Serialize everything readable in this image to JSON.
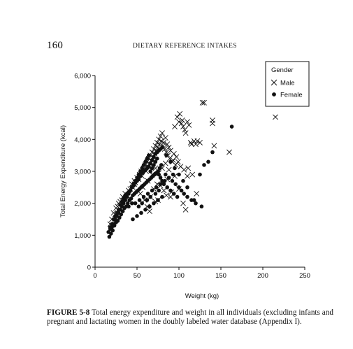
{
  "header": {
    "page_number": "160",
    "running_head": "DIETARY REFERENCE INTAKES"
  },
  "caption": {
    "label": "FIGURE 5-8",
    "text": "Total energy expenditure and weight in all individuals (excluding infants and pregnant and lactating women in the doubly labeled water database (Appendix I)."
  },
  "chart_data": {
    "type": "scatter",
    "title": "",
    "xlabel": "Weight (kg)",
    "ylabel": "Total Energy Expenditure (kcal)",
    "xlim": [
      0,
      250
    ],
    "ylim": [
      0,
      6000
    ],
    "x_ticks": [
      "0",
      "50",
      "100",
      "150",
      "200",
      "250"
    ],
    "y_ticks": [
      "0",
      "1,000",
      "2,000",
      "3,000",
      "4,000",
      "5,000",
      "6,000"
    ],
    "grid": false,
    "legend": {
      "title": "Gender",
      "placement": "top-right",
      "entries": [
        {
          "label": "Male",
          "marker": "x"
        },
        {
          "label": "Female",
          "marker": "dot"
        }
      ]
    },
    "series": [
      {
        "name": "Male",
        "marker": "x",
        "color": "#111111",
        "x": [
          18,
          20,
          22,
          24,
          25,
          27,
          28,
          30,
          32,
          33,
          35,
          36,
          38,
          40,
          42,
          44,
          45,
          47,
          48,
          50,
          52,
          53,
          55,
          56,
          58,
          60,
          61,
          62,
          63,
          64,
          65,
          66,
          67,
          68,
          69,
          70,
          71,
          72,
          73,
          74,
          75,
          76,
          77,
          78,
          79,
          80,
          81,
          82,
          83,
          84,
          85,
          86,
          87,
          88,
          89,
          90,
          92,
          94,
          95,
          97,
          98,
          100,
          101,
          103,
          104,
          105,
          107,
          108,
          110,
          112,
          114,
          115,
          118,
          120,
          122,
          125,
          128,
          130,
          140,
          142,
          160,
          215,
          57,
          63,
          68,
          72,
          76,
          80,
          84,
          88,
          93,
          96,
          99,
          102,
          106,
          111,
          116,
          121,
          66,
          74,
          82,
          86,
          91,
          47,
          54,
          59,
          70,
          78,
          90,
          95,
          100,
          62,
          72,
          85,
          105,
          108,
          65,
          75,
          110,
          140
        ],
        "y": [
          1350,
          1500,
          1700,
          1650,
          1850,
          1900,
          2000,
          2050,
          2100,
          2200,
          2150,
          2300,
          2250,
          2400,
          2450,
          2600,
          2500,
          2700,
          2650,
          2800,
          2750,
          2900,
          3000,
          2850,
          3100,
          3200,
          3000,
          3300,
          3150,
          3400,
          3250,
          3500,
          3350,
          3600,
          3450,
          3700,
          3550,
          3800,
          3650,
          3900,
          3750,
          4000,
          3850,
          4100,
          3950,
          4200,
          3800,
          3900,
          3700,
          4050,
          3600,
          3850,
          3500,
          3750,
          3400,
          3650,
          3300,
          3550,
          4400,
          3450,
          4700,
          4550,
          4800,
          4500,
          4600,
          4400,
          4300,
          4200,
          4550,
          4450,
          3900,
          3850,
          3950,
          3850,
          3950,
          3900,
          5150,
          5150,
          4600,
          3800,
          3600,
          4700,
          2500,
          2700,
          2900,
          3100,
          2950,
          3100,
          3250,
          3050,
          3350,
          3200,
          3300,
          3150,
          3050,
          3100,
          2900,
          2300,
          2200,
          2600,
          2400,
          2750,
          2350,
          2600,
          2300,
          2100,
          2450,
          2550,
          2200,
          2850,
          2450,
          1900,
          2050,
          2250,
          2000,
          1800,
          1750,
          2100,
          2850,
          4500
        ]
      },
      {
        "name": "Female",
        "marker": "dot",
        "color": "#111111",
        "x": [
          16,
          17,
          18,
          19,
          20,
          21,
          22,
          23,
          24,
          25,
          26,
          27,
          28,
          29,
          30,
          31,
          32,
          33,
          34,
          35,
          36,
          37,
          38,
          39,
          40,
          41,
          42,
          43,
          44,
          45,
          46,
          47,
          48,
          49,
          50,
          51,
          52,
          53,
          54,
          55,
          56,
          57,
          58,
          59,
          60,
          61,
          62,
          63,
          64,
          65,
          66,
          67,
          68,
          69,
          70,
          71,
          72,
          73,
          74,
          75,
          76,
          77,
          78,
          79,
          80,
          82,
          84,
          86,
          88,
          90,
          92,
          94,
          96,
          98,
          100,
          103,
          106,
          110,
          115,
          120,
          125,
          130,
          135,
          163,
          18,
          20,
          22,
          24,
          26,
          28,
          30,
          32,
          34,
          36,
          38,
          40,
          42,
          44,
          46,
          48,
          50,
          52,
          54,
          56,
          58,
          60,
          62,
          64,
          66,
          68,
          70,
          72,
          74,
          76,
          78,
          80,
          85,
          90,
          95,
          100,
          105,
          110,
          118,
          127,
          140,
          45,
          50,
          55,
          60,
          65,
          70,
          75,
          80,
          48,
          53,
          58,
          63,
          68,
          73,
          78,
          83,
          88,
          93,
          40,
          44,
          52,
          56,
          62,
          66,
          72,
          76
        ],
        "y": [
          1100,
          950,
          1200,
          1050,
          1250,
          1150,
          1350,
          1300,
          1500,
          1400,
          1600,
          1450,
          1700,
          1550,
          1800,
          1650,
          1900,
          1750,
          2000,
          1850,
          2100,
          1900,
          2200,
          2000,
          2300,
          2100,
          2400,
          2150,
          2500,
          2250,
          2600,
          2300,
          2700,
          2350,
          2800,
          2400,
          2900,
          2450,
          3000,
          2500,
          3100,
          2550,
          3200,
          2600,
          3300,
          2650,
          3400,
          2700,
          3500,
          2750,
          3000,
          2800,
          3100,
          2850,
          3200,
          2900,
          3300,
          2950,
          3400,
          3000,
          2900,
          3100,
          2800,
          3200,
          2700,
          2600,
          2900,
          2500,
          2800,
          2400,
          2700,
          2300,
          2600,
          2200,
          2500,
          2400,
          2300,
          2200,
          2100,
          2000,
          2900,
          3200,
          3300,
          4400,
          1250,
          1350,
          1500,
          1600,
          1700,
          1800,
          1950,
          2050,
          2150,
          2250,
          2300,
          2350,
          2400,
          2500,
          2550,
          2650,
          2700,
          2750,
          2850,
          2950,
          3000,
          3050,
          3100,
          3150,
          3250,
          3350,
          3450,
          3550,
          3600,
          3650,
          3700,
          3750,
          3500,
          3300,
          3100,
          2900,
          2700,
          2500,
          2100,
          1900,
          3600,
          1500,
          1600,
          1700,
          1800,
          1900,
          2000,
          2100,
          2200,
          2000,
          2100,
          2200,
          2300,
          2400,
          2500,
          2600,
          2700,
          2800,
          2900,
          1900,
          2000,
          1900,
          2000,
          2100,
          2200,
          2300,
          2400
        ]
      }
    ]
  }
}
